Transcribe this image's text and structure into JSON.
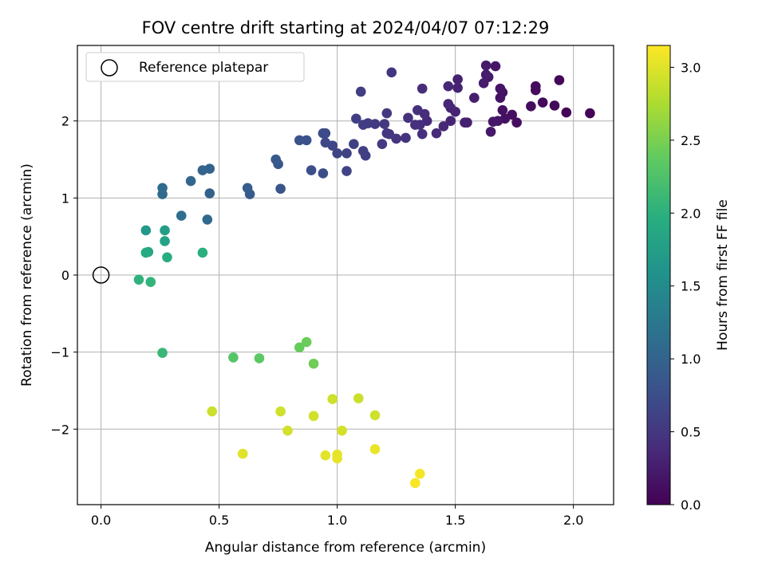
{
  "chart_data": {
    "type": "scatter",
    "title": "FOV centre drift starting at 2024/04/07 07:12:29",
    "xlabel": "Angular distance from reference (arcmin)",
    "ylabel": "Rotation from reference (arcmin)",
    "xlim": [
      -0.1,
      2.17
    ],
    "ylim": [
      -2.98,
      2.98
    ],
    "xticks": [
      0.0,
      0.5,
      1.0,
      1.5,
      2.0
    ],
    "xtick_labels": [
      "0.0",
      "0.5",
      "1.0",
      "1.5",
      "2.0"
    ],
    "yticks": [
      -2,
      -1,
      0,
      1,
      2
    ],
    "ytick_labels": [
      "−2",
      "−1",
      "0",
      "1",
      "2"
    ],
    "grid": true,
    "colormap": "viridis",
    "colorbar": {
      "label": "Hours from first FF file",
      "range": [
        0.0,
        3.15
      ],
      "ticks": [
        0.0,
        0.5,
        1.0,
        1.5,
        2.0,
        2.5,
        3.0
      ],
      "tick_labels": [
        "0.0",
        "0.5",
        "1.0",
        "1.5",
        "2.0",
        "2.5",
        "3.0"
      ]
    },
    "legend": {
      "position": "top-left",
      "entries": [
        {
          "label": "Reference platepar",
          "marker": "hollow-circle"
        }
      ]
    },
    "reference_point": {
      "x": 0.0,
      "y": 0.0
    },
    "series": [
      {
        "points": [
          [
            2.07,
            2.1,
            0.02
          ],
          [
            1.97,
            2.11,
            0.04
          ],
          [
            1.94,
            2.53,
            0.05
          ],
          [
            1.92,
            2.2,
            0.06
          ],
          [
            1.87,
            2.24,
            0.07
          ],
          [
            1.84,
            2.4,
            0.08
          ],
          [
            1.84,
            2.45,
            0.09
          ],
          [
            1.82,
            2.19,
            0.1
          ],
          [
            1.76,
            1.98,
            0.11
          ],
          [
            1.74,
            2.08,
            0.12
          ],
          [
            1.71,
            2.03,
            0.13
          ],
          [
            1.7,
            2.14,
            0.14
          ],
          [
            1.7,
            2.37,
            0.15
          ],
          [
            1.69,
            2.3,
            0.16
          ],
          [
            1.69,
            2.42,
            0.17
          ],
          [
            1.68,
            2.0,
            0.18
          ],
          [
            1.67,
            2.71,
            0.19
          ],
          [
            1.66,
            1.99,
            0.2
          ],
          [
            1.65,
            1.86,
            0.21
          ],
          [
            1.64,
            2.57,
            0.22
          ],
          [
            1.63,
            2.72,
            0.23
          ],
          [
            1.63,
            2.6,
            0.24
          ],
          [
            1.62,
            2.49,
            0.25
          ],
          [
            1.58,
            2.3,
            0.26
          ],
          [
            1.55,
            1.98,
            0.27
          ],
          [
            1.54,
            1.98,
            0.28
          ],
          [
            1.51,
            2.54,
            0.29
          ],
          [
            1.51,
            2.43,
            0.3
          ],
          [
            1.5,
            2.12,
            0.31
          ],
          [
            1.48,
            2.0,
            0.32
          ],
          [
            1.48,
            2.17,
            0.33
          ],
          [
            1.47,
            2.22,
            0.34
          ],
          [
            1.47,
            2.45,
            0.35
          ],
          [
            1.45,
            1.93,
            0.36
          ],
          [
            1.42,
            1.84,
            0.37
          ],
          [
            1.38,
            2.0,
            0.38
          ],
          [
            1.37,
            2.09,
            0.39
          ],
          [
            1.36,
            2.42,
            0.4
          ],
          [
            1.36,
            1.83,
            0.41
          ],
          [
            1.35,
            1.95,
            0.42
          ],
          [
            1.34,
            2.14,
            0.43
          ],
          [
            1.33,
            1.95,
            0.44
          ],
          [
            1.3,
            2.04,
            0.45
          ],
          [
            1.29,
            1.78,
            0.46
          ],
          [
            1.25,
            1.77,
            0.47
          ],
          [
            1.23,
            2.63,
            0.48
          ],
          [
            1.22,
            1.83,
            0.49
          ],
          [
            1.21,
            1.84,
            0.5
          ],
          [
            1.21,
            2.1,
            0.51
          ],
          [
            1.2,
            1.96,
            0.52
          ],
          [
            1.19,
            1.7,
            0.53
          ],
          [
            1.16,
            1.96,
            0.54
          ],
          [
            1.13,
            1.97,
            0.55
          ],
          [
            1.11,
            1.95,
            0.56
          ],
          [
            1.1,
            2.38,
            0.57
          ],
          [
            1.08,
            2.03,
            0.58
          ],
          [
            1.12,
            1.55,
            0.59
          ],
          [
            1.11,
            1.61,
            0.6
          ],
          [
            1.07,
            1.7,
            0.61
          ],
          [
            1.04,
            1.58,
            0.62
          ],
          [
            1.04,
            1.35,
            0.63
          ],
          [
            1.0,
            1.58,
            0.64
          ],
          [
            0.98,
            1.68,
            0.66
          ],
          [
            0.95,
            1.72,
            0.68
          ],
          [
            0.95,
            1.84,
            0.7
          ],
          [
            0.94,
            1.84,
            0.72
          ],
          [
            0.94,
            1.32,
            0.74
          ],
          [
            0.89,
            1.36,
            0.76
          ],
          [
            0.87,
            1.75,
            0.78
          ],
          [
            0.84,
            1.75,
            0.8
          ],
          [
            0.76,
            1.12,
            0.83
          ],
          [
            0.75,
            1.44,
            0.85
          ],
          [
            0.74,
            1.5,
            0.87
          ],
          [
            0.63,
            1.05,
            0.9
          ],
          [
            0.62,
            1.13,
            0.92
          ],
          [
            0.46,
            1.06,
            0.97
          ],
          [
            0.46,
            1.38,
            0.99
          ],
          [
            0.43,
            1.36,
            1.01
          ],
          [
            0.38,
            1.22,
            1.03
          ],
          [
            0.45,
            0.72,
            1.06
          ],
          [
            0.26,
            1.05,
            1.08
          ],
          [
            0.26,
            1.13,
            1.1
          ],
          [
            0.34,
            0.77,
            1.14
          ],
          [
            0.19,
            0.58,
            1.7
          ],
          [
            0.27,
            0.58,
            1.75
          ],
          [
            0.27,
            0.44,
            1.8
          ],
          [
            0.2,
            0.3,
            1.85
          ],
          [
            0.19,
            0.29,
            1.9
          ],
          [
            0.28,
            0.23,
            1.95
          ],
          [
            0.43,
            0.29,
            1.98
          ],
          [
            0.16,
            -0.06,
            2.02
          ],
          [
            0.21,
            -0.09,
            2.05
          ],
          [
            0.26,
            -1.01,
            2.1
          ],
          [
            0.56,
            -1.07,
            2.3
          ],
          [
            0.67,
            -1.08,
            2.35
          ],
          [
            0.84,
            -0.94,
            2.4
          ],
          [
            0.87,
            -0.87,
            2.42
          ],
          [
            0.9,
            -1.15,
            2.45
          ],
          [
            0.47,
            -1.77,
            2.9
          ],
          [
            0.76,
            -1.77,
            2.92
          ],
          [
            0.79,
            -2.02,
            2.94
          ],
          [
            0.9,
            -1.83,
            2.93
          ],
          [
            0.98,
            -1.61,
            2.91
          ],
          [
            1.09,
            -1.6,
            2.9
          ],
          [
            1.16,
            -1.82,
            2.92
          ],
          [
            1.02,
            -2.02,
            2.95
          ],
          [
            0.6,
            -2.32,
            3.0
          ],
          [
            0.95,
            -2.34,
            3.02
          ],
          [
            1.0,
            -2.33,
            3.03
          ],
          [
            1.0,
            -2.38,
            3.04
          ],
          [
            1.16,
            -2.26,
            3.05
          ],
          [
            1.35,
            -2.58,
            3.1
          ],
          [
            1.33,
            -2.7,
            3.12
          ]
        ]
      }
    ]
  }
}
